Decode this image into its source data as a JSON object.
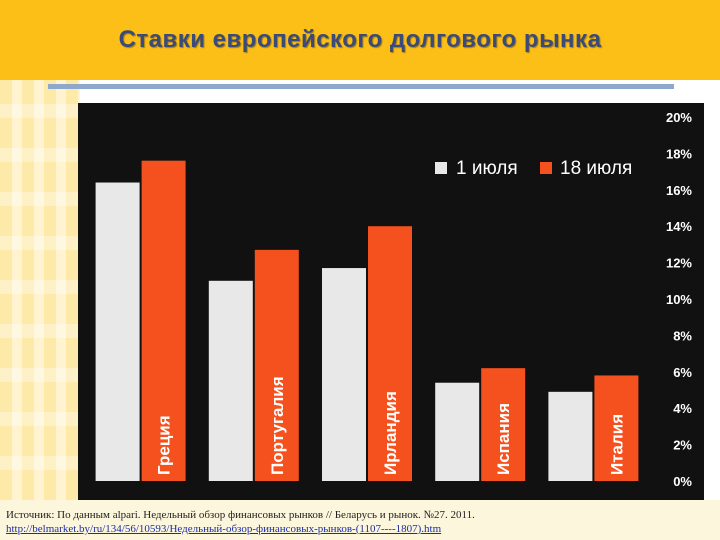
{
  "slide": {
    "title": "Ставки европейского долгового рынка",
    "source_line1": "Источник: По данным alpari.  Недельный обзор финансовых рынков // Беларусь и рынок. №27. 2011.",
    "source_line2": "http://belmarket.by/ru/134/56/10593/Недельный-обзор-финансовых-рынков-(1107----1807).htm"
  },
  "colors": {
    "header": "#fbbf17",
    "chart_bg": "#111111",
    "series1": "#e8e8e8",
    "series2": "#f4511e",
    "text": "#ffffff"
  },
  "chart_data": {
    "type": "bar",
    "categories": [
      "Греция",
      "Португалия",
      "Ирландия",
      "Испания",
      "Италия"
    ],
    "series": [
      {
        "name": "1 июля",
        "values": [
          16.4,
          11.0,
          11.7,
          5.4,
          4.9
        ]
      },
      {
        "name": "18 июля",
        "values": [
          17.6,
          12.7,
          14.0,
          6.2,
          5.8
        ]
      }
    ],
    "ylim": [
      0,
      20
    ],
    "yticks": [
      "0%",
      "2%",
      "4%",
      "6%",
      "8%",
      "10%",
      "12%",
      "14%",
      "16%",
      "18%",
      "20%"
    ],
    "axis_position": "right",
    "legend_position": "top-right",
    "grid": false
  }
}
